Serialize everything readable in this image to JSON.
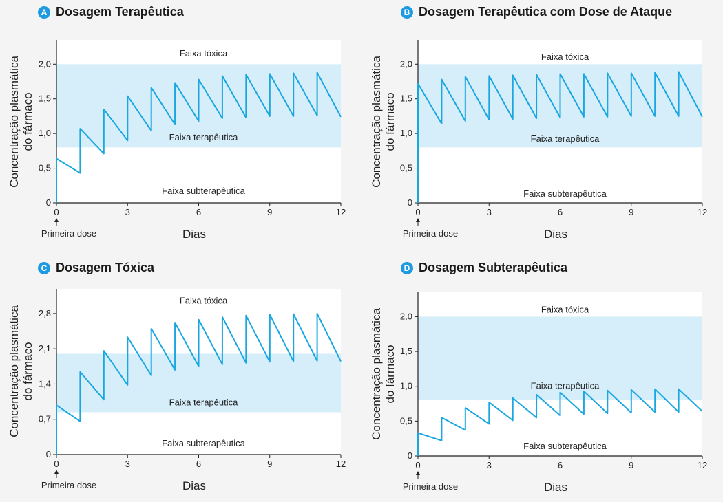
{
  "chart_data": [
    {
      "id": "A",
      "type": "line",
      "title": "Dosagem Terapêutica",
      "xlabel": "Dias",
      "ylabel": [
        "Concentração plasmática",
        "do fármaco"
      ],
      "annotation": "Primeira dose",
      "xlim": [
        0,
        12
      ],
      "ylim": [
        0,
        2.35
      ],
      "xticks": [
        0,
        3,
        6,
        9,
        12
      ],
      "yticks": [
        0,
        0.5,
        1.0,
        1.5,
        2.0
      ],
      "ytick_labels": [
        "0",
        "0,5",
        "1,0",
        "1,5",
        "2,0"
      ],
      "therapeutic_range": [
        0.8,
        2.0
      ],
      "bands": {
        "toxic": "Faixa tóxica",
        "therapeutic": "Faixa terapêutica",
        "subtherapeutic": "Faixa subterapêutica"
      },
      "band_label_y": {
        "toxic": 2.15,
        "therapeutic": 0.94,
        "subtherapeutic": 0.17
      },
      "series": [
        {
          "x": [
            0,
            0,
            1,
            1,
            2,
            2,
            3,
            3,
            4,
            4,
            5,
            5,
            6,
            6,
            7,
            7,
            8,
            8,
            9,
            9,
            10,
            10,
            11,
            11,
            12
          ],
          "y": [
            0,
            0.64,
            0.43,
            1.07,
            0.71,
            1.35,
            0.9,
            1.54,
            1.04,
            1.66,
            1.13,
            1.73,
            1.18,
            1.78,
            1.22,
            1.83,
            1.23,
            1.85,
            1.25,
            1.86,
            1.25,
            1.87,
            1.26,
            1.88,
            1.24
          ]
        }
      ]
    },
    {
      "id": "B",
      "type": "line",
      "title": "Dosagem Terapêutica com Dose de Ataque",
      "xlabel": "Dias",
      "ylabel": [
        "Concentração plasmática",
        "do fármaco"
      ],
      "annotation": "Primeira dose",
      "xlim": [
        0,
        12
      ],
      "ylim": [
        0,
        2.35
      ],
      "xticks": [
        0,
        3,
        6,
        9,
        12
      ],
      "yticks": [
        0,
        0.5,
        1.0,
        1.5,
        2.0
      ],
      "ytick_labels": [
        "0",
        "0,5",
        "1,0",
        "1,5",
        "2,0"
      ],
      "therapeutic_range": [
        0.8,
        2.0
      ],
      "bands": {
        "toxic": "Faixa tóxica",
        "therapeutic": "Faixa terapêutica",
        "subtherapeutic": "Faixa subterapêutica"
      },
      "band_label_y": {
        "toxic": 2.1,
        "therapeutic": 0.92,
        "subtherapeutic": 0.13
      },
      "series": [
        {
          "x": [
            0,
            0,
            1,
            1,
            2,
            2,
            3,
            3,
            4,
            4,
            5,
            5,
            6,
            6,
            7,
            7,
            8,
            8,
            9,
            9,
            10,
            10,
            11,
            11,
            12
          ],
          "y": [
            0,
            1.72,
            1.14,
            1.78,
            1.18,
            1.82,
            1.2,
            1.83,
            1.21,
            1.84,
            1.22,
            1.85,
            1.23,
            1.86,
            1.24,
            1.86,
            1.24,
            1.87,
            1.25,
            1.87,
            1.25,
            1.88,
            1.25,
            1.89,
            1.24
          ]
        }
      ]
    },
    {
      "id": "C",
      "type": "line",
      "title": "Dosagem Tóxica",
      "xlabel": "Dias",
      "ylabel": [
        "Concentração plasmática",
        "do fármaco"
      ],
      "annotation": "Primeira dose",
      "xlim": [
        0,
        12
      ],
      "ylim": [
        0,
        3.29
      ],
      "xticks": [
        0,
        3,
        6,
        9,
        12
      ],
      "yticks": [
        0,
        0.7,
        1.4,
        2.1,
        2.8
      ],
      "ytick_labels": [
        "0",
        "0,7",
        "1,4",
        "2,1",
        "2,8"
      ],
      "therapeutic_range": [
        0.84,
        2.0
      ],
      "bands": {
        "toxic": "Faixa tóxica",
        "therapeutic": "Faixa terapêutica",
        "subtherapeutic": "Faixa subterapêutica"
      },
      "band_label_y": {
        "toxic": 3.05,
        "therapeutic": 1.03,
        "subtherapeutic": 0.22
      },
      "series": [
        {
          "x": [
            0,
            0,
            1,
            1,
            2,
            2,
            3,
            3,
            4,
            4,
            5,
            5,
            6,
            6,
            7,
            7,
            8,
            8,
            9,
            9,
            10,
            10,
            11,
            11,
            12
          ],
          "y": [
            0,
            0.98,
            0.66,
            1.64,
            1.09,
            2.06,
            1.38,
            2.33,
            1.57,
            2.5,
            1.68,
            2.62,
            1.75,
            2.68,
            1.79,
            2.73,
            1.82,
            2.76,
            1.84,
            2.78,
            1.85,
            2.79,
            1.86,
            2.8,
            1.85
          ]
        }
      ]
    },
    {
      "id": "D",
      "type": "line",
      "title": "Dosagem Subterapêutica",
      "xlabel": "Dias",
      "ylabel": [
        "Concentração plasmática",
        "do fármaco"
      ],
      "annotation": "Primeira dose",
      "xlim": [
        0,
        12
      ],
      "ylim": [
        0,
        2.35
      ],
      "xticks": [
        0,
        3,
        6,
        9,
        12
      ],
      "yticks": [
        0,
        0.5,
        1.0,
        1.5,
        2.0
      ],
      "ytick_labels": [
        "0",
        "0,5",
        "1,0",
        "1,5",
        "2,0"
      ],
      "therapeutic_range": [
        0.8,
        2.0
      ],
      "bands": {
        "toxic": "Faixa tóxica",
        "therapeutic": "Faixa terapêutica",
        "subtherapeutic": "Faixa subterapêutica"
      },
      "band_label_y": {
        "toxic": 2.1,
        "therapeutic": 1.0,
        "subtherapeutic": 0.14
      },
      "series": [
        {
          "x": [
            0,
            0,
            1,
            1,
            2,
            2,
            3,
            3,
            4,
            4,
            5,
            5,
            6,
            6,
            7,
            7,
            8,
            8,
            9,
            9,
            10,
            10,
            11,
            11,
            12
          ],
          "y": [
            0,
            0.33,
            0.22,
            0.55,
            0.37,
            0.69,
            0.46,
            0.77,
            0.51,
            0.83,
            0.55,
            0.88,
            0.58,
            0.91,
            0.6,
            0.93,
            0.61,
            0.94,
            0.62,
            0.95,
            0.63,
            0.96,
            0.63,
            0.96,
            0.64
          ]
        }
      ]
    }
  ],
  "colors": {
    "band": "#d5eefa",
    "line": "#1aa6e0",
    "axis": "#222222",
    "badge": "#1e9be0"
  }
}
